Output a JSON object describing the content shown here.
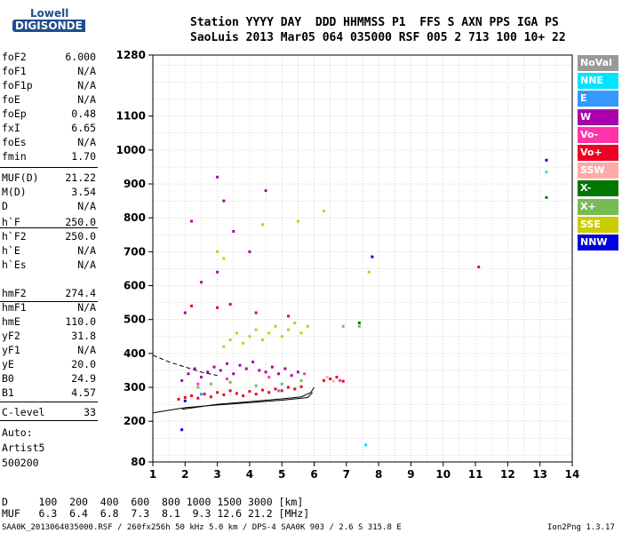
{
  "logo": {
    "line1": "Lowell",
    "line2": "DIGISONDE"
  },
  "header": {
    "labels": "Station YYYY DAY  DDD HHMMSS P1  FFS S AXN PPS IGA PS",
    "values": "SaoLuis 2013 Mar05 064 035000 RSF 005 2 713 100 10+ 22"
  },
  "params": [
    {
      "name": "foF2",
      "value": "6.000"
    },
    {
      "name": "foF1",
      "value": "N/A"
    },
    {
      "name": "foF1p",
      "value": "N/A"
    },
    {
      "name": "foE",
      "value": "N/A"
    },
    {
      "name": "foEp",
      "value": "0.48"
    },
    {
      "name": "fxI",
      "value": "6.65"
    },
    {
      "name": "foEs",
      "value": "N/A"
    },
    {
      "name": "fmin",
      "value": "1.70"
    },
    {
      "name": "MUF(D)",
      "value": "21.22"
    },
    {
      "name": "M(D)",
      "value": "3.54"
    },
    {
      "name": "D",
      "value": "N/A"
    },
    {
      "name": "h`F",
      "value": "250.0"
    },
    {
      "name": "h`F2",
      "value": "250.0"
    },
    {
      "name": "h`E",
      "value": "N/A"
    },
    {
      "name": "h`Es",
      "value": "N/A"
    },
    {
      "name": "hmF2",
      "value": "274.4"
    },
    {
      "name": "hmF1",
      "value": "N/A"
    },
    {
      "name": "hmE",
      "value": "110.0"
    },
    {
      "name": "yF2",
      "value": "31.8"
    },
    {
      "name": "yF1",
      "value": "N/A"
    },
    {
      "name": "yE",
      "value": "20.0"
    },
    {
      "name": "B0",
      "value": "24.9"
    },
    {
      "name": "B1",
      "value": "4.57"
    },
    {
      "name": "C-level",
      "value": "33"
    }
  ],
  "scaler": {
    "line1": "Auto:",
    "line2": "Artist5",
    "line3": "500200"
  },
  "legend": [
    {
      "label": "NoVal",
      "color": "#999999"
    },
    {
      "label": "NNE",
      "color": "#00e5ff"
    },
    {
      "label": "E",
      "color": "#3399ff"
    },
    {
      "label": "W",
      "color": "#aa00aa"
    },
    {
      "label": "Vo-",
      "color": "#ff33aa"
    },
    {
      "label": "Vo+",
      "color": "#ee0022"
    },
    {
      "label": "SSW",
      "color": "#ffaaaa"
    },
    {
      "label": "X-",
      "color": "#007700"
    },
    {
      "label": "X+",
      "color": "#77bb55"
    },
    {
      "label": "SSE",
      "color": "#cccc00"
    },
    {
      "label": "NNW",
      "color": "#0000dd"
    }
  ],
  "muf_table": {
    "d_row": "D     100  200  400  600  800 1000 1500 3000 [km]",
    "muf_row": "MUF   6.3  6.4  6.8  7.3  8.1  9.3 12.6 21.2 [MHz]"
  },
  "footer": {
    "left": "SAA0K_2013064035000.RSF / 260fx256h 50 kHz 5.0 km / DPS-4 SAA0K 903 / 2.6 S 315.8 E",
    "right": "Ion2Png 1.3.17"
  },
  "chart_data": {
    "type": "scatter",
    "title": "",
    "xlabel": "",
    "ylabel": "",
    "xlim": [
      1,
      14
    ],
    "ylim": [
      80,
      1280
    ],
    "x_ticks": [
      1,
      2,
      3,
      4,
      5,
      6,
      7,
      8,
      9,
      10,
      11,
      12,
      13,
      14
    ],
    "y_ticks": [
      80,
      200,
      300,
      400,
      500,
      600,
      700,
      800,
      900,
      1000,
      1100,
      1280
    ],
    "grid": true,
    "series": [
      {
        "name": "Vo+",
        "color": "#ee0022",
        "points": [
          [
            1.8,
            265
          ],
          [
            2.0,
            270
          ],
          [
            2.2,
            275
          ],
          [
            2.4,
            268
          ],
          [
            2.6,
            280
          ],
          [
            2.8,
            272
          ],
          [
            3.0,
            285
          ],
          [
            3.2,
            278
          ],
          [
            3.4,
            290
          ],
          [
            3.6,
            282
          ],
          [
            3.8,
            275
          ],
          [
            4.0,
            288
          ],
          [
            4.2,
            280
          ],
          [
            4.4,
            292
          ],
          [
            4.6,
            285
          ],
          [
            4.8,
            295
          ],
          [
            5.0,
            290
          ],
          [
            5.2,
            300
          ],
          [
            5.4,
            295
          ],
          [
            5.6,
            302
          ],
          [
            6.3,
            320
          ],
          [
            6.5,
            325
          ],
          [
            6.7,
            330
          ],
          [
            6.9,
            318
          ],
          [
            3.0,
            535
          ],
          [
            3.4,
            545
          ],
          [
            2.2,
            540
          ],
          [
            4.2,
            520
          ],
          [
            5.2,
            510
          ],
          [
            11.1,
            655
          ]
        ]
      },
      {
        "name": "W",
        "color": "#aa00aa",
        "points": [
          [
            1.9,
            320
          ],
          [
            2.1,
            340
          ],
          [
            2.3,
            355
          ],
          [
            2.5,
            330
          ],
          [
            2.7,
            345
          ],
          [
            2.9,
            360
          ],
          [
            3.1,
            350
          ],
          [
            3.3,
            370
          ],
          [
            3.5,
            340
          ],
          [
            3.7,
            365
          ],
          [
            3.9,
            355
          ],
          [
            4.1,
            375
          ],
          [
            4.3,
            350
          ],
          [
            4.5,
            345
          ],
          [
            4.7,
            360
          ],
          [
            4.9,
            340
          ],
          [
            5.1,
            355
          ],
          [
            5.3,
            335
          ],
          [
            5.5,
            345
          ],
          [
            2.2,
            790
          ],
          [
            3.0,
            920
          ],
          [
            3.2,
            850
          ],
          [
            3.5,
            760
          ],
          [
            2.5,
            610
          ],
          [
            3.0,
            640
          ],
          [
            2.0,
            520
          ],
          [
            4.5,
            880
          ],
          [
            4.0,
            700
          ]
        ]
      },
      {
        "name": "SSE",
        "color": "#cccc00",
        "points": [
          [
            3.2,
            420
          ],
          [
            3.4,
            440
          ],
          [
            3.6,
            460
          ],
          [
            3.8,
            430
          ],
          [
            4.0,
            450
          ],
          [
            4.2,
            470
          ],
          [
            4.4,
            440
          ],
          [
            4.6,
            460
          ],
          [
            4.8,
            480
          ],
          [
            5.0,
            450
          ],
          [
            5.2,
            470
          ],
          [
            5.4,
            490
          ],
          [
            5.6,
            460
          ],
          [
            5.8,
            480
          ],
          [
            3.0,
            700
          ],
          [
            3.2,
            680
          ],
          [
            5.5,
            790
          ],
          [
            6.3,
            820
          ],
          [
            7.7,
            640
          ],
          [
            4.4,
            780
          ]
        ]
      },
      {
        "name": "X+",
        "color": "#77bb55",
        "points": [
          [
            2.4,
            300
          ],
          [
            2.8,
            310
          ],
          [
            3.4,
            315
          ],
          [
            4.2,
            305
          ],
          [
            5.0,
            310
          ],
          [
            5.6,
            320
          ],
          [
            6.9,
            480
          ],
          [
            7.4,
            480
          ]
        ]
      },
      {
        "name": "X-",
        "color": "#007700",
        "points": [
          [
            7.4,
            490
          ],
          [
            13.2,
            860
          ]
        ]
      },
      {
        "name": "NNW",
        "color": "#0000dd",
        "points": [
          [
            1.9,
            175
          ],
          [
            2.0,
            260
          ],
          [
            7.8,
            685
          ],
          [
            13.2,
            970
          ]
        ]
      },
      {
        "name": "NNE",
        "color": "#00e5ff",
        "points": [
          [
            7.6,
            130
          ],
          [
            13.2,
            935
          ]
        ]
      },
      {
        "name": "Vo-",
        "color": "#ff33aa",
        "points": [
          [
            2.4,
            310
          ],
          [
            3.3,
            325
          ],
          [
            4.6,
            330
          ],
          [
            5.7,
            340
          ],
          [
            6.8,
            320
          ]
        ]
      },
      {
        "name": "E",
        "color": "#3399ff",
        "points": [
          [
            2.5,
            280
          ],
          [
            4.9,
            290
          ]
        ]
      },
      {
        "name": "SSW",
        "color": "#ffaaaa",
        "points": [
          [
            6.4,
            330
          ],
          [
            6.6,
            318
          ]
        ]
      }
    ],
    "traces": {
      "o_trace": [
        [
          1,
          225
        ],
        [
          2,
          240
        ],
        [
          3,
          248
        ],
        [
          4,
          255
        ],
        [
          5,
          262
        ],
        [
          5.8,
          270
        ],
        [
          5.95,
          285
        ]
      ],
      "x_trace": [
        [
          1.9,
          235
        ],
        [
          3,
          250
        ],
        [
          4,
          258
        ],
        [
          5,
          266
        ],
        [
          5.6,
          272
        ],
        [
          5.9,
          285
        ],
        [
          6.0,
          300
        ]
      ],
      "dashed_trace": [
        [
          1,
          395
        ],
        [
          1.5,
          375
        ],
        [
          2,
          360
        ],
        [
          2.5,
          345
        ],
        [
          3,
          335
        ]
      ]
    }
  }
}
